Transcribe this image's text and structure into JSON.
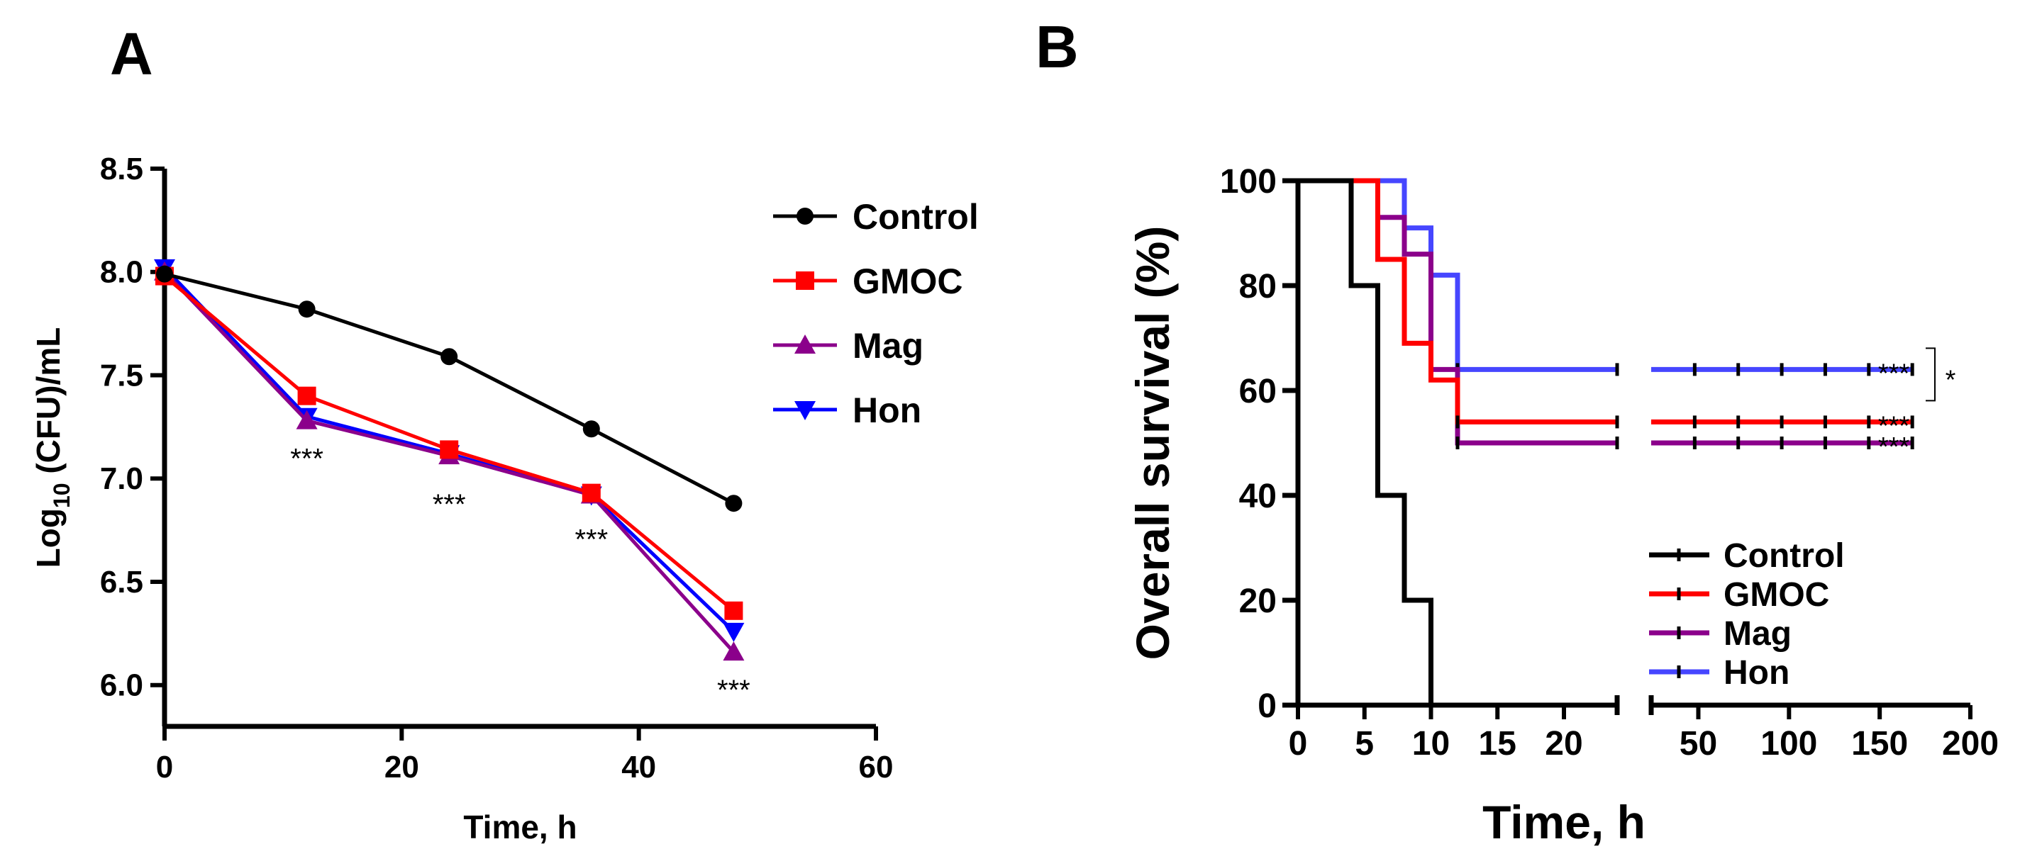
{
  "chart_data": [
    {
      "panel": "A",
      "type": "line",
      "xlabel": "Time, h",
      "ylabel": "Log10 (CFU)/mL",
      "ylabel_main": "Log",
      "ylabel_sub": "10",
      "ylabel_rest": " (CFU)/mL",
      "xlim": [
        0,
        60
      ],
      "ylim": [
        5.8,
        8.5
      ],
      "xticks": [
        0,
        20,
        40,
        60
      ],
      "yticks": [
        6.0,
        6.5,
        7.0,
        7.5,
        8.0,
        8.5
      ],
      "ytick_labels": [
        "6.0",
        "6.5",
        "7.0",
        "7.5",
        "8.0",
        "8.5"
      ],
      "x": [
        0,
        12,
        24,
        36,
        48
      ],
      "series": [
        {
          "name": "Control",
          "color": "#000000",
          "marker": "circle",
          "values": [
            7.99,
            7.82,
            7.59,
            7.24,
            6.88
          ]
        },
        {
          "name": "GMOC",
          "color": "#ff0000",
          "marker": "square",
          "values": [
            7.98,
            7.4,
            7.14,
            6.93,
            6.36
          ]
        },
        {
          "name": "Mag",
          "color": "#8b008b",
          "marker": "triangle-up",
          "values": [
            8.0,
            7.28,
            7.11,
            6.92,
            6.16
          ]
        },
        {
          "name": "Hon",
          "color": "#0000ff",
          "marker": "triangle-down",
          "values": [
            8.02,
            7.3,
            7.12,
            6.92,
            6.26
          ]
        }
      ],
      "annotations": [
        {
          "text": "***",
          "x": 12,
          "y": 7.05
        },
        {
          "text": "***",
          "x": 24,
          "y": 6.83
        },
        {
          "text": "***",
          "x": 36,
          "y": 6.66
        },
        {
          "text": "***",
          "x": 48,
          "y": 5.93
        }
      ]
    },
    {
      "panel": "B",
      "type": "line",
      "subtype": "kaplan-meier",
      "xlabel": "Time, h",
      "ylabel": "Overall survival (%)",
      "ylim": [
        0,
        100
      ],
      "yticks": [
        0,
        20,
        40,
        60,
        80,
        100
      ],
      "x_segments": [
        {
          "range": [
            0,
            24
          ],
          "ticks": [
            0,
            5,
            10,
            15,
            20
          ]
        },
        {
          "range": [
            24,
            200
          ],
          "ticks": [
            50,
            100,
            150,
            200
          ]
        }
      ],
      "series": [
        {
          "name": "Control",
          "color": "#000000",
          "steps": [
            [
              0,
              100
            ],
            [
              4,
              80
            ],
            [
              6,
              40
            ],
            [
              8,
              20
            ],
            [
              10,
              0
            ]
          ],
          "censored": []
        },
        {
          "name": "GMOC",
          "color": "#ff0000",
          "steps": [
            [
              0,
              100
            ],
            [
              6,
              85
            ],
            [
              8,
              69
            ],
            [
              10,
              62
            ],
            [
              12,
              54
            ],
            [
              168,
              54
            ]
          ],
          "censored": [
            12,
            24,
            48,
            72,
            96,
            120,
            144,
            168
          ]
        },
        {
          "name": "Mag",
          "color": "#8b008b",
          "steps": [
            [
              0,
              100
            ],
            [
              6,
              93
            ],
            [
              8,
              86
            ],
            [
              10,
              64
            ],
            [
              12,
              50
            ],
            [
              168,
              50
            ]
          ],
          "censored": [
            12,
            24,
            48,
            72,
            96,
            120,
            144,
            168
          ]
        },
        {
          "name": "Hon",
          "color": "#4646ff",
          "steps": [
            [
              0,
              100
            ],
            [
              8,
              91
            ],
            [
              10,
              82
            ],
            [
              12,
              64
            ],
            [
              168,
              64
            ]
          ],
          "censored": [
            12,
            24,
            48,
            72,
            96,
            120,
            144,
            168
          ]
        }
      ],
      "annotations": [
        {
          "text": "***",
          "y": 64
        },
        {
          "text": "***",
          "y": 54
        },
        {
          "text": "***",
          "y": 50
        },
        {
          "text": "*",
          "between": [
            64,
            54
          ]
        }
      ]
    }
  ]
}
